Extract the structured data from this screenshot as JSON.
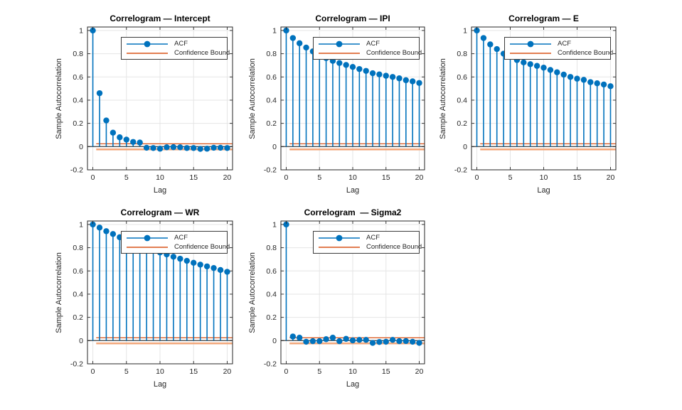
{
  "figure": {
    "background": "#ffffff"
  },
  "colors": {
    "stem": "#0072BD",
    "marker": "#0072BD",
    "confidence_upper": "#D95319",
    "confidence_lower": "#F2A679",
    "zero_line": "#4D4D4D",
    "axis": "#262626",
    "grid": "#E5E5E5",
    "tick_label": "#262626",
    "title": "#000000",
    "legend_border": "#3B3B3B",
    "legend_background": "#FFFFFF"
  },
  "axes": {
    "ylabel": "Sample Autocorrelation",
    "xlabel": "Lag",
    "xticks": [
      0,
      5,
      10,
      15,
      20
    ],
    "ytick_values": [
      -0.2,
      0,
      0.2,
      0.4,
      0.6,
      0.8,
      1
    ],
    "ytick_labels": [
      "-0.2",
      "0",
      "0.2",
      "0.4",
      "0.6",
      "0.8",
      "1"
    ],
    "xlim": [
      -0.8,
      20.8
    ],
    "ylim": [
      -0.2,
      1.03
    ],
    "grid": true
  },
  "legend": {
    "position": "northeast",
    "items": [
      {
        "label": "ACF",
        "type": "line-marker",
        "color": "#0072BD"
      },
      {
        "label": "Confidence Bound",
        "type": "line",
        "color": "#D95319"
      }
    ]
  },
  "chart_data": [
    {
      "type": "stem",
      "title": "Correlogram — Intercept",
      "series_name": "ACF",
      "lags": [
        0,
        1,
        2,
        3,
        4,
        5,
        6,
        7,
        8,
        9,
        10,
        11,
        12,
        13,
        14,
        15,
        16,
        17,
        18,
        19,
        20
      ],
      "acf": [
        1,
        0.46,
        0.225,
        0.12,
        0.08,
        0.06,
        0.04,
        0.035,
        -0.01,
        -0.012,
        -0.018,
        -0.006,
        -0.005,
        -0.006,
        -0.012,
        -0.012,
        -0.02,
        -0.018,
        -0.01,
        -0.01,
        -0.012
      ],
      "confidence_bound": 0.024
    },
    {
      "type": "stem",
      "title": "Correlogram — IPI",
      "series_name": "ACF",
      "lags": [
        0,
        1,
        2,
        3,
        4,
        5,
        6,
        7,
        8,
        9,
        10,
        11,
        12,
        13,
        14,
        15,
        16,
        17,
        18,
        19,
        20
      ],
      "acf": [
        1,
        0.935,
        0.89,
        0.853,
        0.82,
        0.79,
        0.762,
        0.738,
        0.72,
        0.703,
        0.686,
        0.668,
        0.652,
        0.632,
        0.622,
        0.61,
        0.6,
        0.588,
        0.572,
        0.562,
        0.548
      ],
      "confidence_bound": 0.024
    },
    {
      "type": "stem",
      "title": "Correlogram — E",
      "series_name": "ACF",
      "lags": [
        0,
        1,
        2,
        3,
        4,
        5,
        6,
        7,
        8,
        9,
        10,
        11,
        12,
        13,
        14,
        15,
        16,
        17,
        18,
        19,
        20
      ],
      "acf": [
        1,
        0.935,
        0.88,
        0.84,
        0.8,
        0.775,
        0.745,
        0.725,
        0.71,
        0.695,
        0.68,
        0.66,
        0.64,
        0.62,
        0.6,
        0.585,
        0.575,
        0.555,
        0.545,
        0.535,
        0.52
      ],
      "confidence_bound": 0.024
    },
    {
      "type": "stem",
      "title": "Correlogram — WR",
      "series_name": "ACF",
      "lags": [
        0,
        1,
        2,
        3,
        4,
        5,
        6,
        7,
        8,
        9,
        10,
        11,
        12,
        13,
        14,
        15,
        16,
        17,
        18,
        19,
        20
      ],
      "acf": [
        1,
        0.973,
        0.942,
        0.918,
        0.89,
        0.868,
        0.846,
        0.824,
        0.802,
        0.78,
        0.759,
        0.742,
        0.722,
        0.705,
        0.687,
        0.67,
        0.654,
        0.639,
        0.625,
        0.608,
        0.592
      ],
      "confidence_bound": 0.024
    },
    {
      "type": "stem",
      "title": "Correlogram  — Sigma2",
      "series_name": "ACF",
      "lags": [
        0,
        1,
        2,
        3,
        4,
        5,
        6,
        7,
        8,
        9,
        10,
        11,
        12,
        13,
        14,
        15,
        16,
        17,
        18,
        19,
        20
      ],
      "acf": [
        1,
        0.035,
        0.025,
        -0.01,
        -0.005,
        -0.005,
        0.012,
        0.025,
        -0.005,
        0.015,
        0.002,
        0.006,
        0.006,
        -0.02,
        -0.012,
        -0.01,
        0.006,
        -0.005,
        -0.004,
        -0.01,
        -0.02
      ],
      "confidence_bound": 0.024
    }
  ]
}
